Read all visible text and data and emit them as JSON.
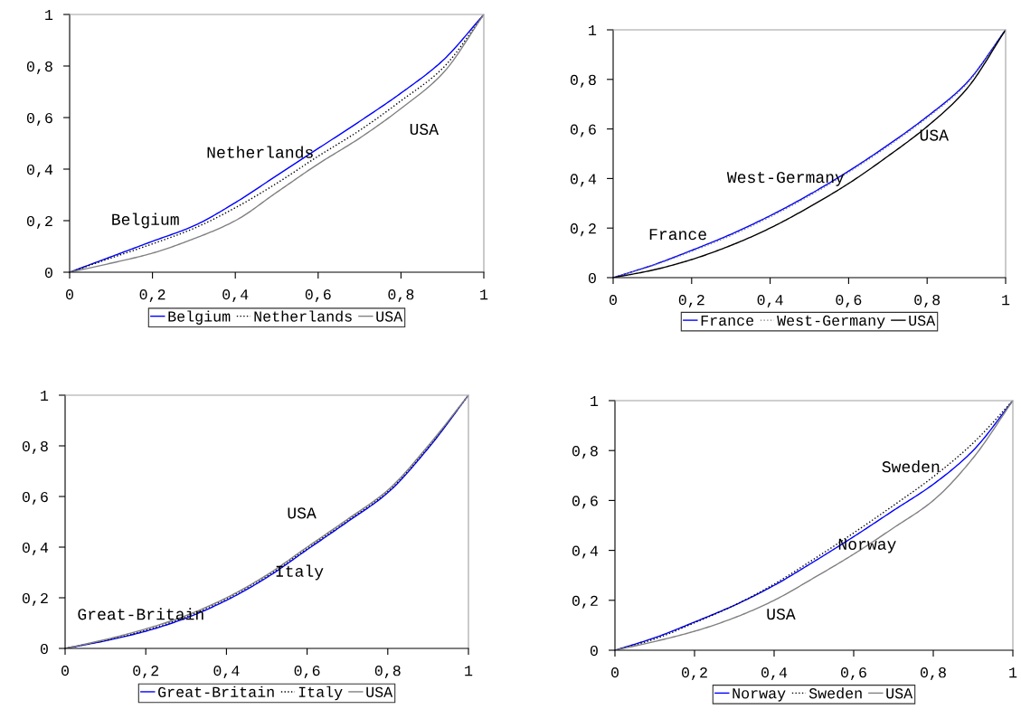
{
  "chart_data": [
    {
      "type": "line",
      "x": [
        0,
        0.1,
        0.2,
        0.3,
        0.4,
        0.5,
        0.6,
        0.7,
        0.8,
        0.9,
        1
      ],
      "xlim": [
        0,
        1
      ],
      "ylim": [
        0,
        1
      ],
      "xticks": [
        0,
        {
          "value": 0.2,
          "label": "0,2"
        },
        {
          "value": 0.4,
          "label": "0,4"
        },
        {
          "value": 0.6,
          "label": "0,6"
        },
        {
          "value": 0.8,
          "label": "0,8"
        },
        1
      ],
      "yticks": [
        0,
        {
          "value": 0.2,
          "label": "0,2"
        },
        {
          "value": 0.4,
          "label": "0,4"
        },
        {
          "value": 0.6,
          "label": "0,6"
        },
        {
          "value": 0.8,
          "label": "0,8"
        },
        1
      ],
      "series": [
        {
          "name": "Belgium",
          "color": "#0000ff",
          "line_style": "solid",
          "values": [
            0,
            0.06,
            0.12,
            0.18,
            0.27,
            0.375,
            0.48,
            0.585,
            0.695,
            0.82,
            1
          ]
        },
        {
          "name": "Netherlands",
          "color": "#000000",
          "line_style": "dotted",
          "values": [
            0,
            0.055,
            0.11,
            0.17,
            0.25,
            0.345,
            0.45,
            0.55,
            0.665,
            0.79,
            1
          ]
        },
        {
          "name": "USA",
          "color": "#808080",
          "line_style": "solid",
          "values": [
            0,
            0.035,
            0.074,
            0.13,
            0.2,
            0.31,
            0.42,
            0.52,
            0.635,
            0.77,
            1
          ]
        }
      ],
      "annotations": [
        "Belgium",
        "Netherlands",
        "USA"
      ],
      "legend": "bottom",
      "grid": false
    },
    {
      "type": "line",
      "x": [
        0,
        0.1,
        0.2,
        0.3,
        0.4,
        0.5,
        0.6,
        0.7,
        0.8,
        0.9,
        1
      ],
      "xlim": [
        0,
        1
      ],
      "ylim": [
        0,
        1
      ],
      "xticks": [
        0,
        {
          "value": 0.2,
          "label": "0,2"
        },
        {
          "value": 0.4,
          "label": "0,4"
        },
        {
          "value": 0.6,
          "label": "0,6"
        },
        {
          "value": 0.8,
          "label": "0,8"
        },
        1
      ],
      "yticks": [
        0,
        {
          "value": 0.2,
          "label": "0,2"
        },
        {
          "value": 0.4,
          "label": "0,4"
        },
        {
          "value": 0.6,
          "label": "0,6"
        },
        {
          "value": 0.8,
          "label": "0,8"
        },
        1
      ],
      "series": [
        {
          "name": "France",
          "color": "#0000ff",
          "line_style": "solid",
          "values": [
            0,
            0.05,
            0.11,
            0.175,
            0.25,
            0.335,
            0.43,
            0.535,
            0.65,
            0.785,
            1
          ]
        },
        {
          "name": "West-Germany",
          "color": "#808080",
          "line_style": "dotted",
          "values": [
            0,
            0.048,
            0.106,
            0.17,
            0.245,
            0.33,
            0.425,
            0.53,
            0.645,
            0.78,
            1
          ]
        },
        {
          "name": "USA",
          "color": "#000000",
          "line_style": "solid",
          "values": [
            0,
            0.03,
            0.073,
            0.13,
            0.2,
            0.285,
            0.38,
            0.49,
            0.61,
            0.76,
            1
          ]
        }
      ],
      "annotations": [
        "France",
        "West-Germany",
        "USA"
      ],
      "legend": "bottom",
      "grid": false
    },
    {
      "type": "line",
      "x": [
        0,
        0.1,
        0.2,
        0.3,
        0.4,
        0.5,
        0.6,
        0.7,
        0.8,
        0.9,
        1
      ],
      "xlim": [
        0,
        1
      ],
      "ylim": [
        0,
        1
      ],
      "xticks": [
        0,
        {
          "value": 0.2,
          "label": "0,2"
        },
        {
          "value": 0.4,
          "label": "0,4"
        },
        {
          "value": 0.6,
          "label": "0,6"
        },
        {
          "value": 0.8,
          "label": "0,8"
        },
        1
      ],
      "yticks": [
        0,
        {
          "value": 0.2,
          "label": "0,2"
        },
        {
          "value": 0.4,
          "label": "0,4"
        },
        {
          "value": 0.6,
          "label": "0,6"
        },
        {
          "value": 0.8,
          "label": "0,8"
        },
        1
      ],
      "series": [
        {
          "name": "Great-Britain",
          "color": "#0000ff",
          "line_style": "solid",
          "values": [
            0,
            0.03,
            0.068,
            0.12,
            0.19,
            0.28,
            0.39,
            0.5,
            0.615,
            0.79,
            1
          ]
        },
        {
          "name": "Italy",
          "color": "#000000",
          "line_style": "dotted",
          "values": [
            0,
            0.032,
            0.072,
            0.125,
            0.196,
            0.286,
            0.395,
            0.505,
            0.62,
            0.795,
            1
          ]
        },
        {
          "name": "USA",
          "color": "#808080",
          "line_style": "solid",
          "values": [
            0,
            0.035,
            0.077,
            0.13,
            0.2,
            0.29,
            0.4,
            0.51,
            0.625,
            0.8,
            1
          ]
        }
      ],
      "annotations": [
        "Great-Britain",
        "Italy",
        "USA"
      ],
      "legend": "bottom",
      "grid": false
    },
    {
      "type": "line",
      "x": [
        0,
        0.1,
        0.2,
        0.3,
        0.4,
        0.5,
        0.6,
        0.7,
        0.8,
        0.9,
        1
      ],
      "xlim": [
        0,
        1
      ],
      "ylim": [
        0,
        1
      ],
      "xticks": [
        0,
        {
          "value": 0.2,
          "label": "0,2"
        },
        {
          "value": 0.4,
          "label": "0,4"
        },
        {
          "value": 0.6,
          "label": "0,6"
        },
        {
          "value": 0.8,
          "label": "0,8"
        },
        1
      ],
      "yticks": [
        0,
        {
          "value": 0.2,
          "label": "0,2"
        },
        {
          "value": 0.4,
          "label": "0,4"
        },
        {
          "value": 0.6,
          "label": "0,6"
        },
        {
          "value": 0.8,
          "label": "0,8"
        },
        1
      ],
      "series": [
        {
          "name": "Norway",
          "color": "#0000ff",
          "line_style": "solid",
          "values": [
            0,
            0.05,
            0.113,
            0.18,
            0.26,
            0.355,
            0.455,
            0.56,
            0.665,
            0.8,
            1
          ]
        },
        {
          "name": "Sweden",
          "color": "#000000",
          "line_style": "dotted",
          "values": [
            0,
            0.045,
            0.11,
            0.18,
            0.265,
            0.365,
            0.47,
            0.58,
            0.695,
            0.83,
            1
          ]
        },
        {
          "name": "USA",
          "color": "#808080",
          "line_style": "solid",
          "values": [
            0,
            0.035,
            0.076,
            0.13,
            0.2,
            0.29,
            0.385,
            0.49,
            0.6,
            0.77,
            1
          ]
        }
      ],
      "annotations": [
        "Sweden",
        "Norway",
        "USA"
      ],
      "legend": "bottom",
      "grid": false
    }
  ]
}
